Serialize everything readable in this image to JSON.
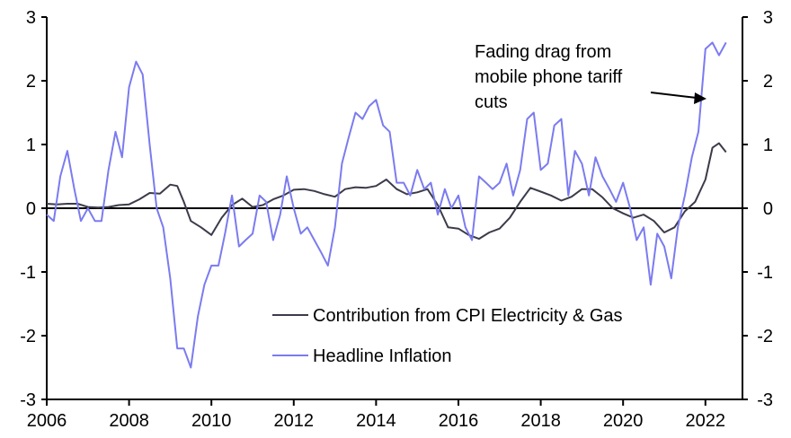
{
  "chart_data": {
    "type": "line",
    "title": "",
    "xlabel": "",
    "ylabel": "",
    "ylabel_right": "",
    "xlim": [
      2006,
      2022.9
    ],
    "ylim": [
      -3,
      3
    ],
    "ylim_right": [
      -3,
      3
    ],
    "x_ticks": [
      "2006",
      "2008",
      "2010",
      "2012",
      "2014",
      "2016",
      "2018",
      "2020",
      "2022"
    ],
    "y_ticks": [
      "3",
      "2",
      "1",
      "0",
      "-1",
      "-2",
      "-3"
    ],
    "y_ticks_right": [
      "3",
      "2",
      "1",
      "0",
      "-1",
      "-2",
      "-3"
    ],
    "grid": false,
    "zero_line": true,
    "legend_position": "bottom-center",
    "annotation": {
      "lines": [
        "Fading drag from",
        "mobile phone tariff",
        "cuts"
      ],
      "arrow_target": {
        "x": 2022.2,
        "y": 1.75
      }
    },
    "series": [
      {
        "name": "Contribution from CPI Electricity & Gas",
        "color": "#3b3b4a",
        "x": [
          2006.0,
          2006.25,
          2006.5,
          2006.75,
          2007.0,
          2007.25,
          2007.5,
          2007.75,
          2008.0,
          2008.25,
          2008.5,
          2008.75,
          2009.0,
          2009.17,
          2009.33,
          2009.5,
          2009.75,
          2010.0,
          2010.25,
          2010.5,
          2010.75,
          2011.0,
          2011.25,
          2011.5,
          2011.75,
          2012.0,
          2012.25,
          2012.5,
          2012.75,
          2013.0,
          2013.25,
          2013.5,
          2013.75,
          2014.0,
          2014.25,
          2014.5,
          2014.75,
          2015.0,
          2015.25,
          2015.5,
          2015.75,
          2016.0,
          2016.25,
          2016.5,
          2016.75,
          2017.0,
          2017.25,
          2017.5,
          2017.75,
          2018.0,
          2018.25,
          2018.5,
          2018.75,
          2019.0,
          2019.25,
          2019.5,
          2019.75,
          2020.0,
          2020.25,
          2020.5,
          2020.75,
          2021.0,
          2021.25,
          2021.5,
          2021.75,
          2022.0,
          2022.17,
          2022.33,
          2022.5
        ],
        "values": [
          0.07,
          0.06,
          0.07,
          0.07,
          0.02,
          0.01,
          0.02,
          0.05,
          0.06,
          0.14,
          0.24,
          0.23,
          0.37,
          0.35,
          0.1,
          -0.2,
          -0.3,
          -0.42,
          -0.15,
          0.05,
          0.15,
          0.02,
          0.05,
          0.14,
          0.2,
          0.29,
          0.3,
          0.27,
          0.22,
          0.18,
          0.3,
          0.33,
          0.32,
          0.35,
          0.45,
          0.3,
          0.22,
          0.25,
          0.3,
          0.05,
          -0.3,
          -0.32,
          -0.42,
          -0.48,
          -0.38,
          -0.32,
          -0.15,
          0.1,
          0.32,
          0.26,
          0.2,
          0.12,
          0.18,
          0.3,
          0.3,
          0.17,
          0.0,
          -0.08,
          -0.15,
          -0.1,
          -0.2,
          -0.38,
          -0.3,
          -0.05,
          0.1,
          0.45,
          0.95,
          1.02,
          0.88
        ]
      },
      {
        "name": "Headline Inflation",
        "color": "#7b7bf0",
        "x": [
          2006.0,
          2006.17,
          2006.33,
          2006.5,
          2006.67,
          2006.83,
          2007.0,
          2007.17,
          2007.33,
          2007.5,
          2007.67,
          2007.83,
          2008.0,
          2008.17,
          2008.33,
          2008.5,
          2008.67,
          2008.83,
          2009.0,
          2009.17,
          2009.33,
          2009.5,
          2009.67,
          2009.83,
          2010.0,
          2010.17,
          2010.33,
          2010.5,
          2010.67,
          2010.83,
          2011.0,
          2011.17,
          2011.33,
          2011.5,
          2011.67,
          2011.83,
          2012.0,
          2012.17,
          2012.33,
          2012.5,
          2012.67,
          2012.83,
          2013.0,
          2013.17,
          2013.33,
          2013.5,
          2013.67,
          2013.83,
          2014.0,
          2014.17,
          2014.33,
          2014.5,
          2014.67,
          2014.83,
          2015.0,
          2015.17,
          2015.33,
          2015.5,
          2015.67,
          2015.83,
          2016.0,
          2016.17,
          2016.33,
          2016.5,
          2016.67,
          2016.83,
          2017.0,
          2017.17,
          2017.33,
          2017.5,
          2017.67,
          2017.83,
          2018.0,
          2018.17,
          2018.33,
          2018.5,
          2018.67,
          2018.83,
          2019.0,
          2019.17,
          2019.33,
          2019.5,
          2019.67,
          2019.83,
          2020.0,
          2020.17,
          2020.33,
          2020.5,
          2020.67,
          2020.83,
          2021.0,
          2021.17,
          2021.33,
          2021.5,
          2021.67,
          2021.83,
          2022.0,
          2022.17,
          2022.33,
          2022.5
        ],
        "values": [
          -0.1,
          -0.2,
          0.5,
          0.9,
          0.3,
          -0.2,
          0.0,
          -0.2,
          -0.2,
          0.6,
          1.2,
          0.8,
          1.9,
          2.3,
          2.1,
          1.0,
          0.0,
          -0.3,
          -1.1,
          -2.2,
          -2.2,
          -2.5,
          -1.7,
          -1.2,
          -0.9,
          -0.9,
          -0.4,
          0.2,
          -0.6,
          -0.5,
          -0.4,
          0.2,
          0.1,
          -0.5,
          -0.1,
          0.5,
          0.0,
          -0.4,
          -0.3,
          -0.5,
          -0.7,
          -0.9,
          -0.3,
          0.7,
          1.1,
          1.5,
          1.4,
          1.6,
          1.7,
          1.3,
          1.2,
          0.4,
          0.4,
          0.2,
          0.6,
          0.3,
          0.4,
          -0.1,
          0.3,
          0.0,
          0.2,
          -0.3,
          -0.5,
          0.5,
          0.4,
          0.3,
          0.4,
          0.7,
          0.2,
          0.6,
          1.4,
          1.5,
          0.6,
          0.7,
          1.3,
          1.4,
          0.2,
          0.9,
          0.7,
          0.2,
          0.8,
          0.5,
          0.3,
          0.1,
          0.4,
          0.0,
          -0.5,
          -0.3,
          -1.2,
          -0.4,
          -0.6,
          -1.1,
          -0.3,
          0.2,
          0.8,
          1.2,
          2.5,
          2.6,
          2.4,
          2.6
        ]
      }
    ]
  }
}
